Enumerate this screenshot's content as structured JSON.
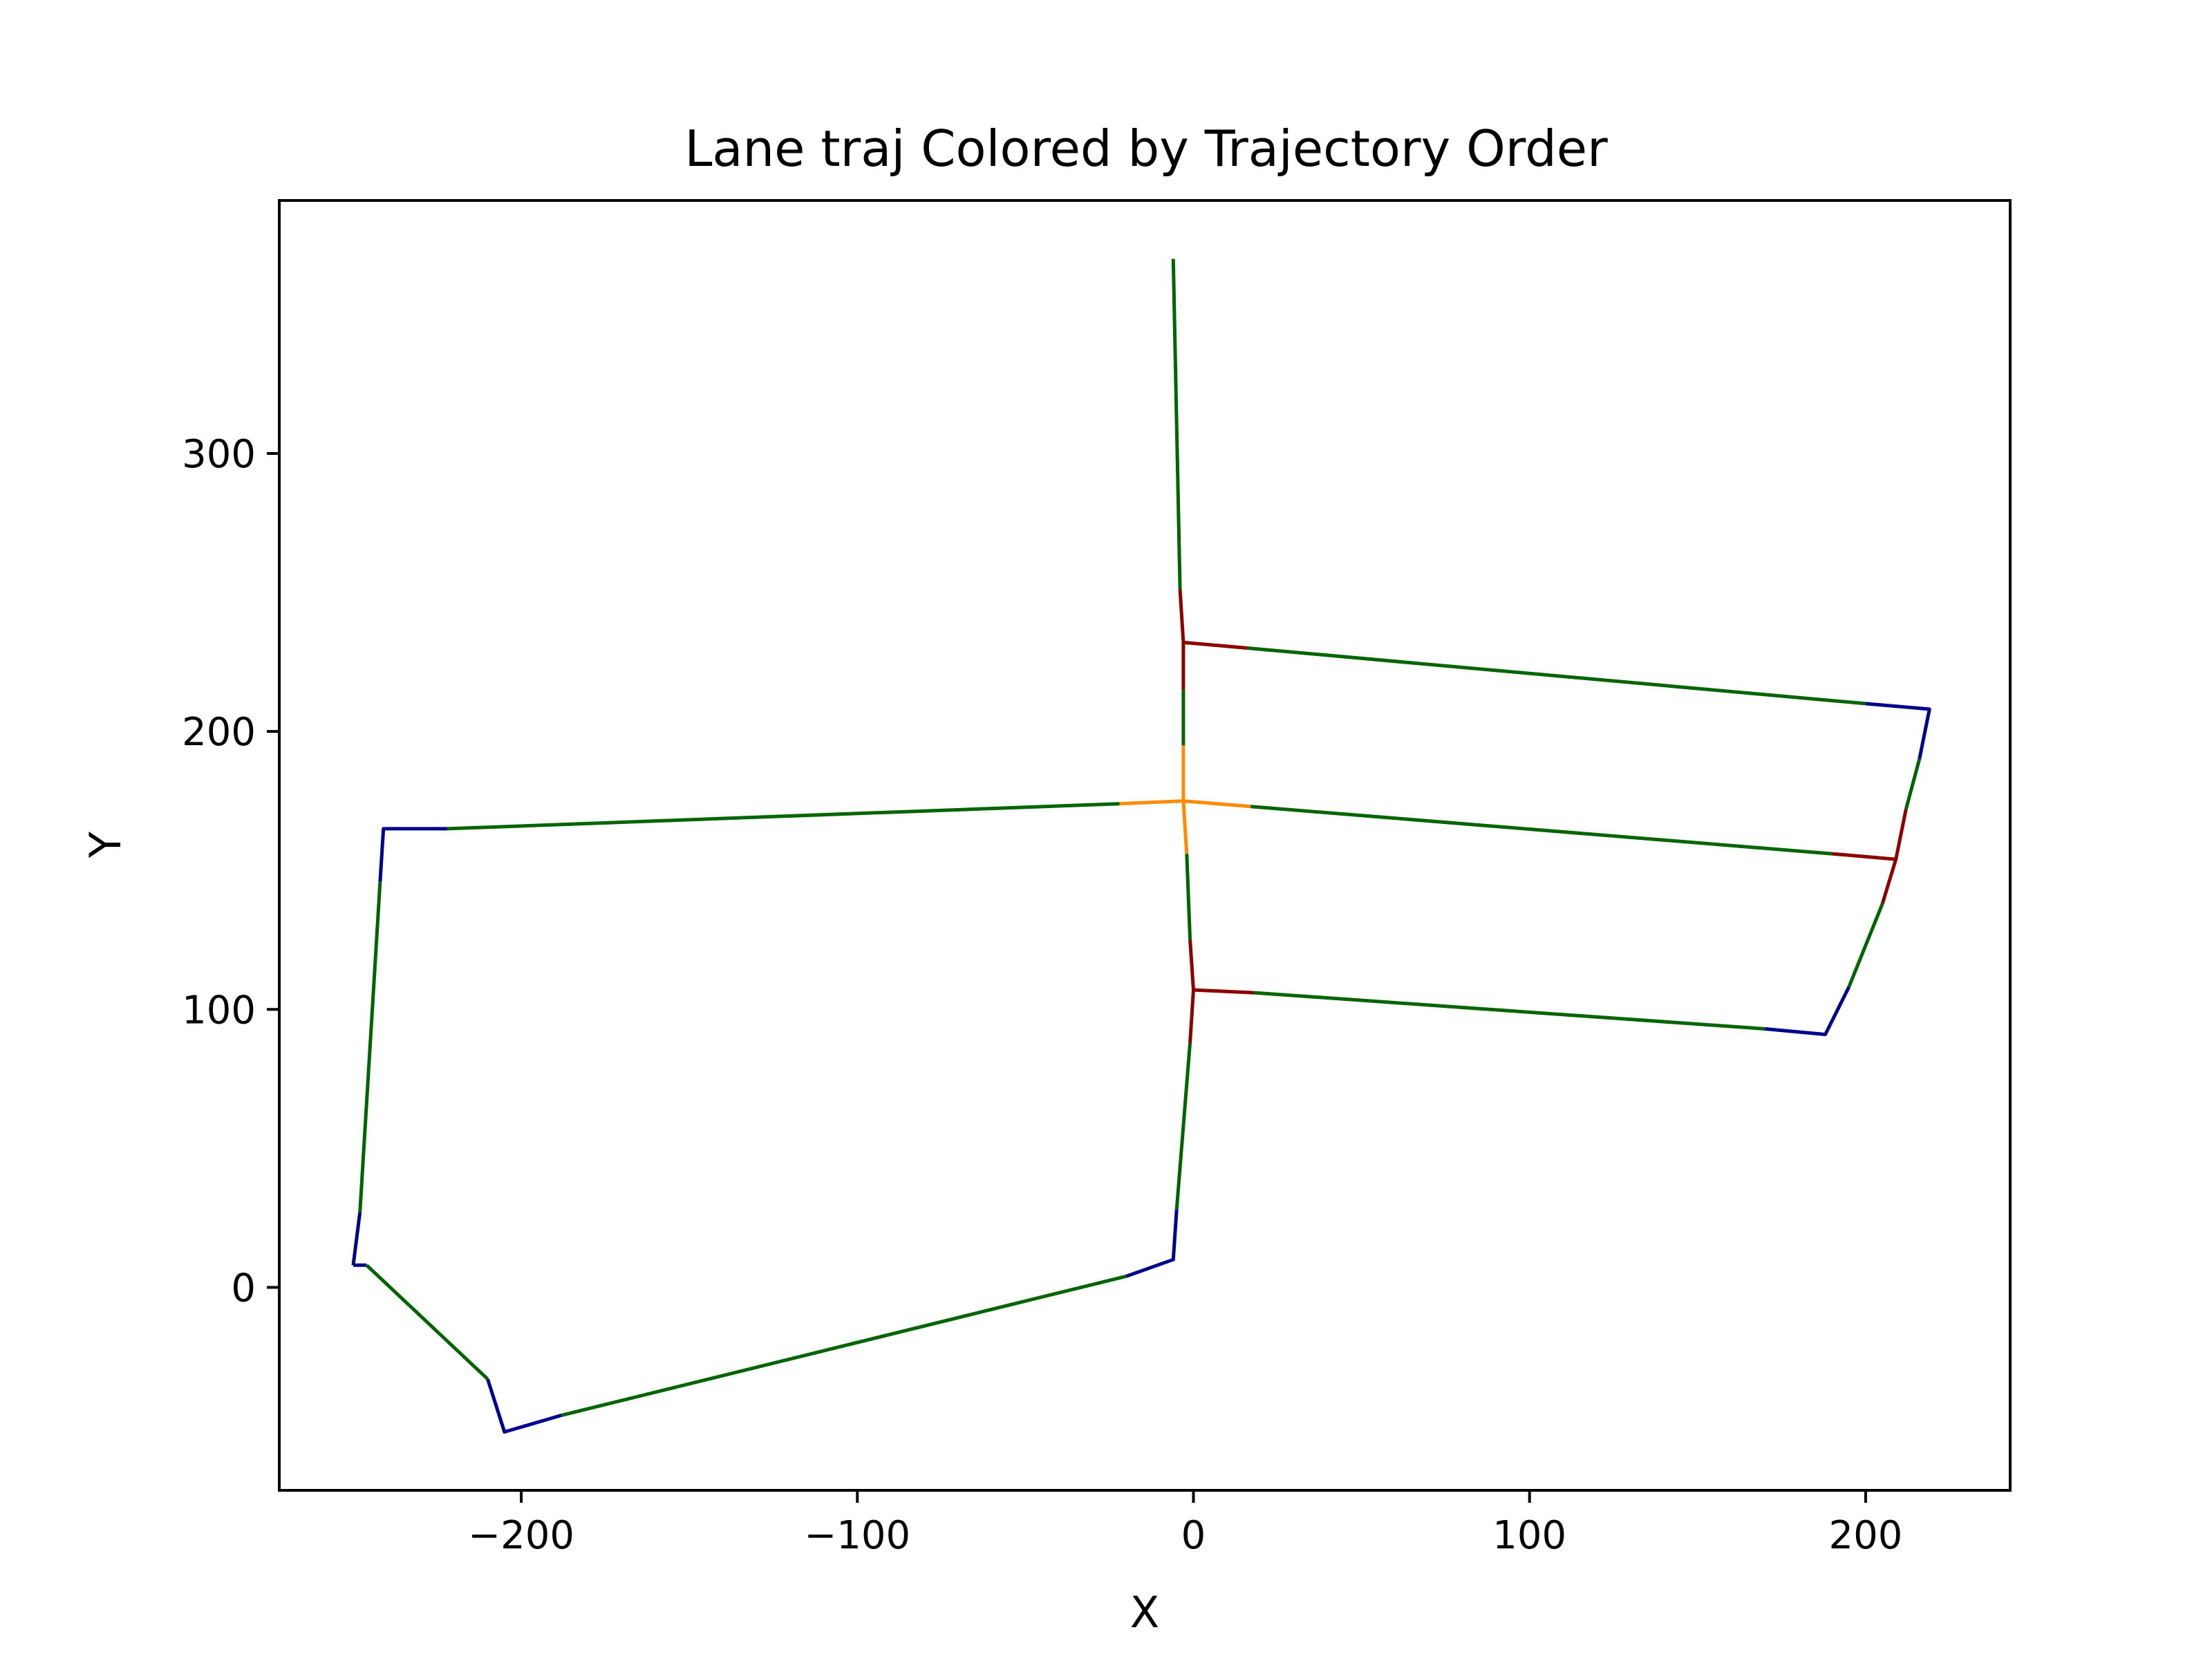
{
  "chart_data": {
    "type": "line",
    "title": "Lane traj Colored by Trajectory Order",
    "xlabel": "X",
    "ylabel": "Y",
    "xlim": [
      -272,
      243
    ],
    "ylim": [
      -73,
      391
    ],
    "x_ticks": [
      -200,
      -100,
      0,
      100,
      200
    ],
    "y_ticks": [
      0,
      100,
      200,
      300
    ],
    "x_tick_labels": [
      "−200",
      "−100",
      "0",
      "100",
      "200"
    ],
    "y_tick_labels": [
      "0",
      "100",
      "200",
      "300"
    ],
    "grid": false,
    "legend": false,
    "colors": {
      "start": "#00008b",
      "middle": "#006400",
      "junction": "#8b0000",
      "center": "#ff8c00"
    },
    "series": [
      {
        "color": "start",
        "points": [
          [
            -250,
            8
          ],
          [
            -246,
            8
          ]
        ]
      },
      {
        "color": "middle",
        "points": [
          [
            -246,
            8
          ],
          [
            -210,
            -33
          ]
        ]
      },
      {
        "color": "start",
        "points": [
          [
            -210,
            -33
          ],
          [
            -205,
            -52
          ],
          [
            -188,
            -46
          ]
        ]
      },
      {
        "color": "middle",
        "points": [
          [
            -188,
            -46
          ],
          [
            -20,
            4
          ]
        ]
      },
      {
        "color": "start",
        "points": [
          [
            -20,
            4
          ],
          [
            -6,
            10
          ],
          [
            -5,
            28
          ]
        ]
      },
      {
        "color": "middle",
        "points": [
          [
            -5,
            28
          ],
          [
            -1,
            88
          ]
        ]
      },
      {
        "color": "junction",
        "points": [
          [
            -1,
            88
          ],
          [
            0,
            107
          ],
          [
            -1,
            125
          ]
        ]
      },
      {
        "color": "middle",
        "points": [
          [
            -1,
            125
          ],
          [
            -2,
            156
          ]
        ]
      },
      {
        "color": "center",
        "points": [
          [
            -2,
            156
          ],
          [
            -3,
            175
          ],
          [
            -3,
            195
          ]
        ]
      },
      {
        "color": "middle",
        "points": [
          [
            -3,
            195
          ],
          [
            -3,
            215
          ]
        ]
      },
      {
        "color": "junction",
        "points": [
          [
            -3,
            215
          ],
          [
            -3,
            232
          ],
          [
            -4,
            251
          ]
        ]
      },
      {
        "color": "middle",
        "points": [
          [
            -4,
            251
          ],
          [
            -6,
            370
          ]
        ]
      },
      {
        "color": "junction",
        "points": [
          [
            -3,
            232
          ],
          [
            16,
            230
          ]
        ]
      },
      {
        "color": "middle",
        "points": [
          [
            16,
            230
          ],
          [
            200,
            210
          ]
        ]
      },
      {
        "color": "start",
        "points": [
          [
            200,
            210
          ],
          [
            219,
            208
          ],
          [
            216,
            190
          ]
        ]
      },
      {
        "color": "middle",
        "points": [
          [
            216,
            190
          ],
          [
            212,
            172
          ]
        ]
      },
      {
        "color": "junction",
        "points": [
          [
            212,
            172
          ],
          [
            209,
            154
          ],
          [
            205,
            138
          ]
        ]
      },
      {
        "color": "middle",
        "points": [
          [
            205,
            138
          ],
          [
            195,
            108
          ]
        ]
      },
      {
        "color": "start",
        "points": [
          [
            195,
            108
          ],
          [
            188,
            91
          ],
          [
            170,
            93
          ]
        ]
      },
      {
        "color": "middle",
        "points": [
          [
            170,
            93
          ],
          [
            18,
            106
          ]
        ]
      },
      {
        "color": "junction",
        "points": [
          [
            18,
            106
          ],
          [
            0,
            107
          ]
        ]
      },
      {
        "color": "center",
        "points": [
          [
            -3,
            175
          ],
          [
            17,
            173
          ]
        ]
      },
      {
        "color": "middle",
        "points": [
          [
            17,
            173
          ],
          [
            190,
            156
          ]
        ]
      },
      {
        "color": "junction",
        "points": [
          [
            190,
            156
          ],
          [
            209,
            154
          ]
        ]
      },
      {
        "color": "center",
        "points": [
          [
            -3,
            175
          ],
          [
            -22,
            174
          ]
        ]
      },
      {
        "color": "middle",
        "points": [
          [
            -22,
            174
          ],
          [
            -222,
            165
          ]
        ]
      },
      {
        "color": "start",
        "points": [
          [
            -222,
            165
          ],
          [
            -241,
            165
          ],
          [
            -242,
            146
          ]
        ]
      },
      {
        "color": "middle",
        "points": [
          [
            -242,
            146
          ],
          [
            -248,
            27
          ]
        ]
      },
      {
        "color": "start",
        "points": [
          [
            -248,
            27
          ],
          [
            -250,
            8
          ]
        ]
      }
    ]
  }
}
